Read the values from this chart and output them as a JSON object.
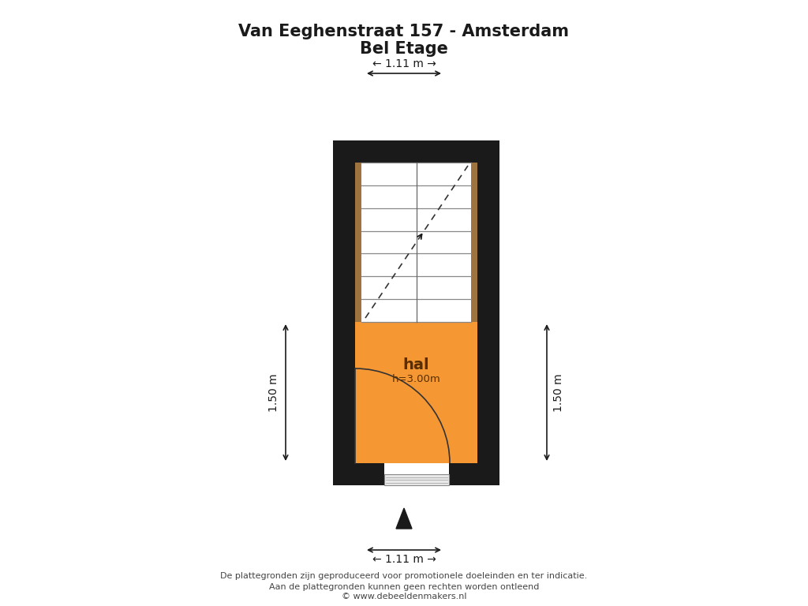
{
  "title_line1": "Van Eeghenstraat 157 - Amsterdam",
  "title_line2": "Bel Etage",
  "bg_color": "#ffffff",
  "wall_color": "#1a1a1a",
  "room_color": "#f59733",
  "stair_color": "#ffffff",
  "wood_color": "#9e7340",
  "room_label": "hal",
  "room_height": "h=3.00m",
  "dim_top": "← 1.11 m →",
  "dim_bottom": "← 1.11 m →",
  "dim_left": "1.50 m",
  "dim_right": "1.50 m",
  "footer_line1": "De plattegronden zijn geproduceerd voor promotionele doeleinden en ter indicatie.",
  "footer_line2": "Aan de plattegronden kunnen geen rechten worden ontleend",
  "footer_line3": "© www.debeeldenmakers.nl"
}
